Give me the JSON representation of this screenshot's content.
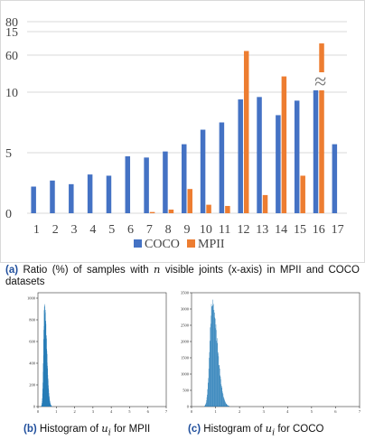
{
  "chart_data": [
    {
      "type": "bar",
      "categories": [
        "1",
        "2",
        "3",
        "4",
        "5",
        "6",
        "7",
        "8",
        "9",
        "10",
        "11",
        "12",
        "13",
        "14",
        "15",
        "16",
        "17"
      ],
      "series": [
        {
          "name": "COCO",
          "color": "#4472c4",
          "values": [
            2.2,
            2.7,
            2.4,
            3.2,
            3.1,
            4.7,
            4.6,
            5.1,
            5.7,
            6.9,
            7.5,
            9.4,
            9.6,
            8.1,
            9.3,
            10.5,
            5.7
          ]
        },
        {
          "name": "MPII",
          "color": "#ed7d31",
          "values": [
            0,
            0,
            0,
            0,
            0,
            0,
            0.1,
            0.3,
            2.0,
            0.7,
            0.6,
            13.4,
            1.5,
            11.3,
            3.1,
            67,
            0
          ]
        }
      ],
      "y_ticks": [
        "0",
        "5",
        "10",
        "15",
        "60",
        "80"
      ],
      "ylim_lower": [
        0,
        17.5
      ],
      "ylim_upper": [
        55,
        85
      ],
      "axis_break": true,
      "grid": true,
      "legend_position": "bottom-center",
      "break_symbol": "≈"
    },
    {
      "type": "histogram",
      "y_ticks": [
        "0",
        "200",
        "400",
        "600",
        "800",
        "1000"
      ],
      "x_ticks": [
        "0",
        "1",
        "2",
        "3",
        "4",
        "5",
        "6",
        "7"
      ],
      "ylim": [
        0,
        1050
      ],
      "xlim": [
        0,
        7
      ],
      "color": "#1f77b4",
      "peak_value": 960,
      "peak_at": 0.35
    },
    {
      "type": "histogram",
      "y_ticks": [
        "0",
        "500",
        "1000",
        "1500",
        "2000",
        "2500",
        "3000",
        "3500"
      ],
      "x_ticks": [
        "0",
        "1",
        "2",
        "3",
        "4",
        "5",
        "6",
        "7"
      ],
      "ylim": [
        0,
        3500
      ],
      "xlim": [
        0,
        7
      ],
      "color": "#1f77b4",
      "peak_value": 3300,
      "peak_at": 0.85
    }
  ],
  "captions": {
    "a_tag": "(a)",
    "a_text_1": "Ratio (%) of samples with ",
    "a_var": "n",
    "a_text_2": " visible joints (x-axis) in MPII and COCO datasets",
    "b_tag": "(b)",
    "b_text": "Histogram of ",
    "b_var": "u",
    "b_sub": "i",
    "b_text_2": " for MPII",
    "c_tag": "(c)",
    "c_text": "Histogram of ",
    "c_var": "u",
    "c_sub": "i",
    "c_text_2": " for COCO"
  }
}
